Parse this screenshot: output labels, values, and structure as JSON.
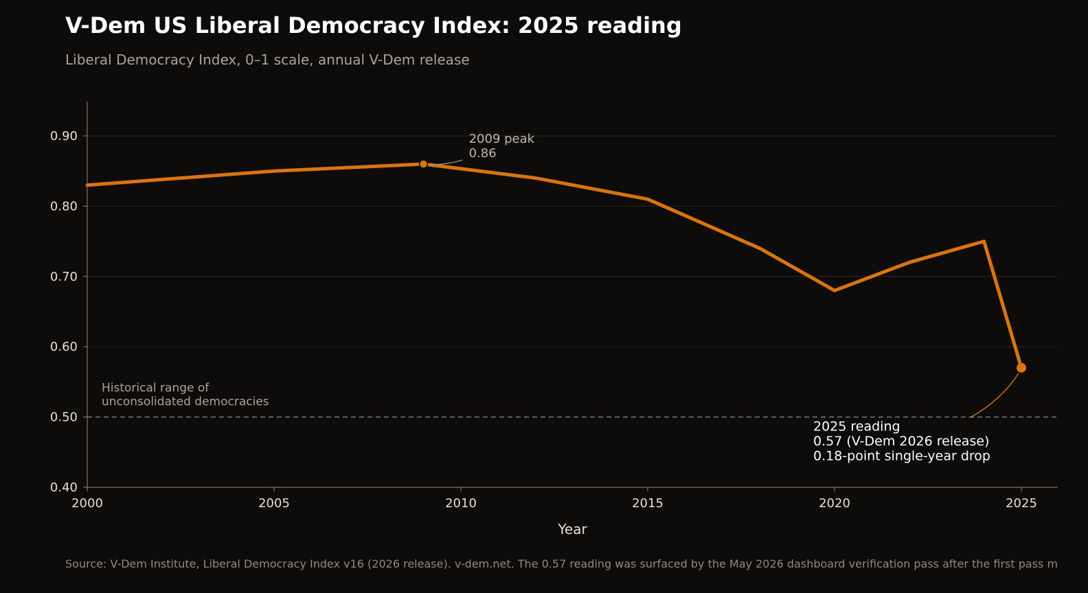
{
  "chart_data": {
    "type": "line",
    "title": "V-Dem US Liberal Democracy Index: 2025 reading",
    "subtitle": "Liberal Democracy Index, 0–1 scale, annual V-Dem release",
    "xlabel": "Year",
    "ylabel": "",
    "xlim": [
      2000,
      2026
    ],
    "ylim": [
      0.4,
      0.95
    ],
    "x_ticks": [
      2000,
      2005,
      2010,
      2015,
      2020,
      2025
    ],
    "y_ticks": [
      0.4,
      0.5,
      0.6,
      0.7,
      0.8,
      0.9
    ],
    "y_tick_labels": [
      "0.40",
      "0.50",
      "0.60",
      "0.70",
      "0.80",
      "0.90"
    ],
    "grid": "horizontal",
    "series": [
      {
        "color": "#d9740f",
        "x": [
          2000,
          2005,
          2009,
          2012,
          2015,
          2018,
          2020,
          2022,
          2024,
          2025
        ],
        "values": [
          0.83,
          0.85,
          0.86,
          0.84,
          0.81,
          0.74,
          0.68,
          0.72,
          0.75,
          0.57
        ]
      }
    ],
    "reference_line": {
      "y": 0.5,
      "label_lines": [
        "Historical range of",
        "unconsolidated democracies"
      ]
    },
    "annotations": {
      "peak": {
        "x": 2009,
        "y": 0.86,
        "lines": [
          "2009 peak",
          "0.86"
        ]
      },
      "latest": {
        "x": 2025,
        "y": 0.57,
        "lines": [
          "2025 reading",
          "0.57 (V-Dem 2026 release)",
          "0.18-point single-year drop"
        ]
      }
    }
  },
  "source": "Source: V-Dem Institute, Liberal Democracy Index v16 (2026 release). v-dem.net. The 0.57 reading was surfaced by the May 2026 dashboard verification pass after the first pass m",
  "colors": {
    "background": "#0d0c0a",
    "line": "#d9740f",
    "grid": "#2a2825",
    "axis": "#8e8a82"
  }
}
